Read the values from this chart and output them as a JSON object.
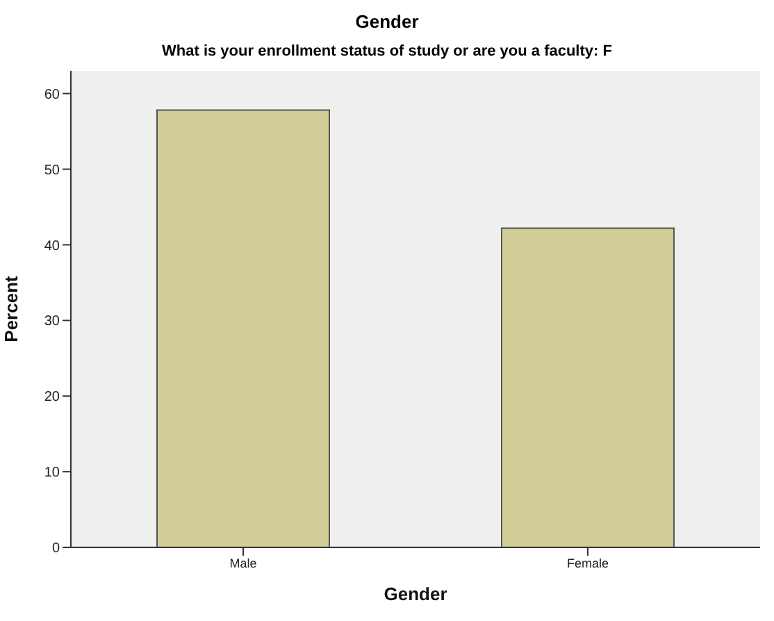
{
  "chart_data": {
    "type": "bar",
    "title": "Gender",
    "subtitle": "What is your enrollment status of study or are you a faculty: F",
    "xlabel": "Gender",
    "ylabel": "Percent",
    "categories": [
      "Male",
      "Female"
    ],
    "values": [
      57.8,
      42.2
    ],
    "color": "#d3cd97",
    "ylim": [
      0,
      63
    ],
    "yticks": [
      0,
      10,
      20,
      30,
      40,
      50,
      60
    ],
    "grid": false,
    "legend": false
  }
}
